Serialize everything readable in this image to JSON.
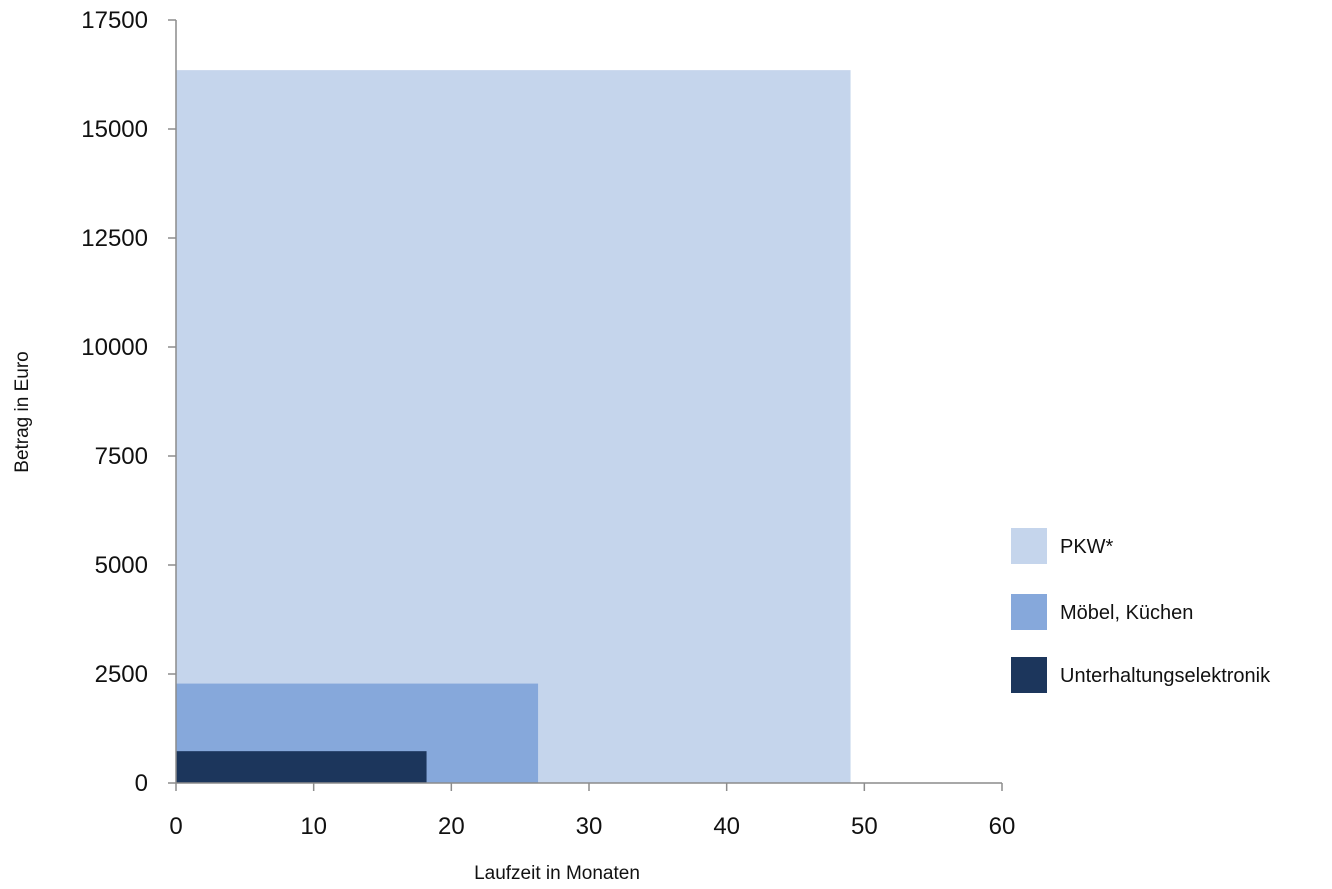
{
  "chart_data": {
    "type": "area",
    "title": "",
    "xlabel": "Laufzeit in Monaten",
    "ylabel": "Betrag in Euro",
    "xlim": [
      0,
      60
    ],
    "ylim": [
      0,
      17500
    ],
    "xticks": [
      0,
      10,
      20,
      30,
      40,
      50,
      60
    ],
    "yticks": [
      0,
      2500,
      5000,
      7500,
      10000,
      12500,
      15000,
      17500
    ],
    "grid": false,
    "legend_position": "right",
    "series": [
      {
        "name": "PKW*",
        "x": 49,
        "y": 16350,
        "color": "#c5d5ec"
      },
      {
        "name": "Möbel, Küchen",
        "x": 26.3,
        "y": 2280,
        "color": "#86a8db"
      },
      {
        "name": "Unterhaltungselektronik",
        "x": 18.2,
        "y": 730,
        "color": "#1c365c"
      }
    ]
  }
}
